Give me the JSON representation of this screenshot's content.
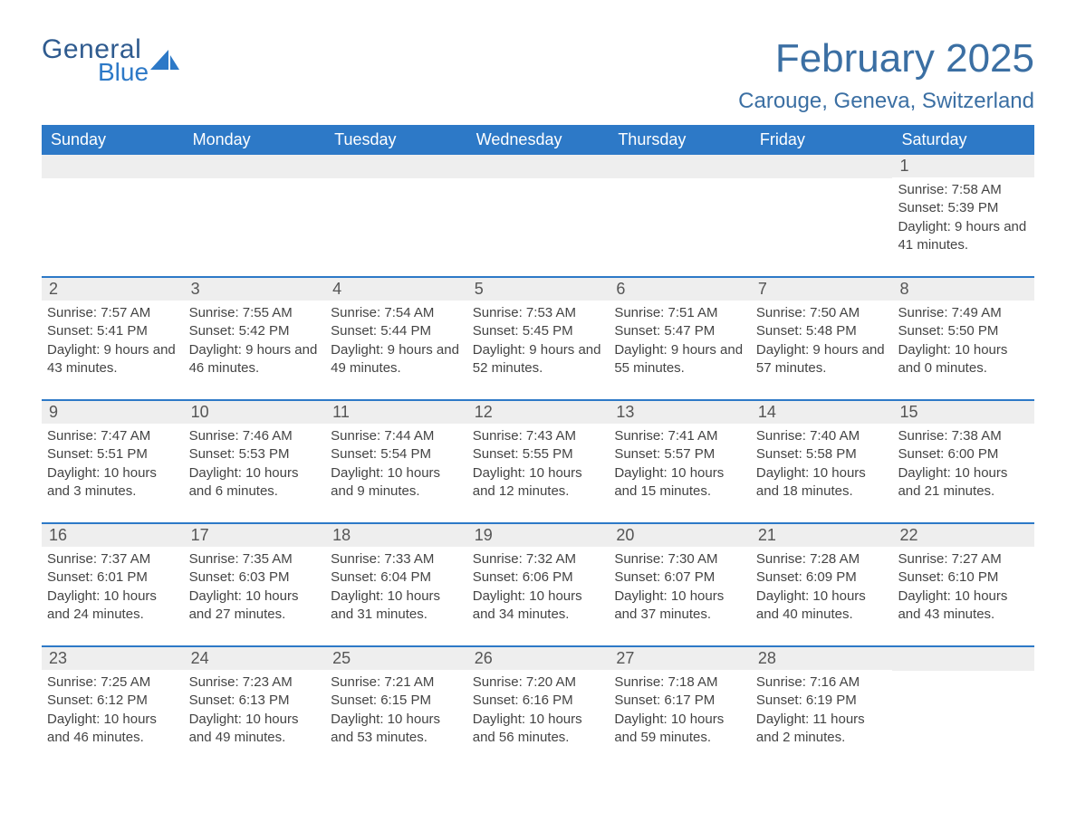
{
  "logo": {
    "general": "General",
    "blue": "Blue",
    "mark_color": "#2d79c7"
  },
  "title": "February 2025",
  "location": "Carouge, Geneva, Switzerland",
  "colors": {
    "header_bg": "#2d79c7",
    "header_text": "#ffffff",
    "accent_rule": "#2d79c7",
    "daynum_bg": "#eeeeee",
    "title_color": "#3b6fa3",
    "body_text": "#444444",
    "page_bg": "#ffffff"
  },
  "weekdays": [
    "Sunday",
    "Monday",
    "Tuesday",
    "Wednesday",
    "Thursday",
    "Friday",
    "Saturday"
  ],
  "weeks": [
    [
      null,
      null,
      null,
      null,
      null,
      null,
      {
        "n": "1",
        "sunrise": "Sunrise: 7:58 AM",
        "sunset": "Sunset: 5:39 PM",
        "daylight": "Daylight: 9 hours and 41 minutes."
      }
    ],
    [
      {
        "n": "2",
        "sunrise": "Sunrise: 7:57 AM",
        "sunset": "Sunset: 5:41 PM",
        "daylight": "Daylight: 9 hours and 43 minutes."
      },
      {
        "n": "3",
        "sunrise": "Sunrise: 7:55 AM",
        "sunset": "Sunset: 5:42 PM",
        "daylight": "Daylight: 9 hours and 46 minutes."
      },
      {
        "n": "4",
        "sunrise": "Sunrise: 7:54 AM",
        "sunset": "Sunset: 5:44 PM",
        "daylight": "Daylight: 9 hours and 49 minutes."
      },
      {
        "n": "5",
        "sunrise": "Sunrise: 7:53 AM",
        "sunset": "Sunset: 5:45 PM",
        "daylight": "Daylight: 9 hours and 52 minutes."
      },
      {
        "n": "6",
        "sunrise": "Sunrise: 7:51 AM",
        "sunset": "Sunset: 5:47 PM",
        "daylight": "Daylight: 9 hours and 55 minutes."
      },
      {
        "n": "7",
        "sunrise": "Sunrise: 7:50 AM",
        "sunset": "Sunset: 5:48 PM",
        "daylight": "Daylight: 9 hours and 57 minutes."
      },
      {
        "n": "8",
        "sunrise": "Sunrise: 7:49 AM",
        "sunset": "Sunset: 5:50 PM",
        "daylight": "Daylight: 10 hours and 0 minutes."
      }
    ],
    [
      {
        "n": "9",
        "sunrise": "Sunrise: 7:47 AM",
        "sunset": "Sunset: 5:51 PM",
        "daylight": "Daylight: 10 hours and 3 minutes."
      },
      {
        "n": "10",
        "sunrise": "Sunrise: 7:46 AM",
        "sunset": "Sunset: 5:53 PM",
        "daylight": "Daylight: 10 hours and 6 minutes."
      },
      {
        "n": "11",
        "sunrise": "Sunrise: 7:44 AM",
        "sunset": "Sunset: 5:54 PM",
        "daylight": "Daylight: 10 hours and 9 minutes."
      },
      {
        "n": "12",
        "sunrise": "Sunrise: 7:43 AM",
        "sunset": "Sunset: 5:55 PM",
        "daylight": "Daylight: 10 hours and 12 minutes."
      },
      {
        "n": "13",
        "sunrise": "Sunrise: 7:41 AM",
        "sunset": "Sunset: 5:57 PM",
        "daylight": "Daylight: 10 hours and 15 minutes."
      },
      {
        "n": "14",
        "sunrise": "Sunrise: 7:40 AM",
        "sunset": "Sunset: 5:58 PM",
        "daylight": "Daylight: 10 hours and 18 minutes."
      },
      {
        "n": "15",
        "sunrise": "Sunrise: 7:38 AM",
        "sunset": "Sunset: 6:00 PM",
        "daylight": "Daylight: 10 hours and 21 minutes."
      }
    ],
    [
      {
        "n": "16",
        "sunrise": "Sunrise: 7:37 AM",
        "sunset": "Sunset: 6:01 PM",
        "daylight": "Daylight: 10 hours and 24 minutes."
      },
      {
        "n": "17",
        "sunrise": "Sunrise: 7:35 AM",
        "sunset": "Sunset: 6:03 PM",
        "daylight": "Daylight: 10 hours and 27 minutes."
      },
      {
        "n": "18",
        "sunrise": "Sunrise: 7:33 AM",
        "sunset": "Sunset: 6:04 PM",
        "daylight": "Daylight: 10 hours and 31 minutes."
      },
      {
        "n": "19",
        "sunrise": "Sunrise: 7:32 AM",
        "sunset": "Sunset: 6:06 PM",
        "daylight": "Daylight: 10 hours and 34 minutes."
      },
      {
        "n": "20",
        "sunrise": "Sunrise: 7:30 AM",
        "sunset": "Sunset: 6:07 PM",
        "daylight": "Daylight: 10 hours and 37 minutes."
      },
      {
        "n": "21",
        "sunrise": "Sunrise: 7:28 AM",
        "sunset": "Sunset: 6:09 PM",
        "daylight": "Daylight: 10 hours and 40 minutes."
      },
      {
        "n": "22",
        "sunrise": "Sunrise: 7:27 AM",
        "sunset": "Sunset: 6:10 PM",
        "daylight": "Daylight: 10 hours and 43 minutes."
      }
    ],
    [
      {
        "n": "23",
        "sunrise": "Sunrise: 7:25 AM",
        "sunset": "Sunset: 6:12 PM",
        "daylight": "Daylight: 10 hours and 46 minutes."
      },
      {
        "n": "24",
        "sunrise": "Sunrise: 7:23 AM",
        "sunset": "Sunset: 6:13 PM",
        "daylight": "Daylight: 10 hours and 49 minutes."
      },
      {
        "n": "25",
        "sunrise": "Sunrise: 7:21 AM",
        "sunset": "Sunset: 6:15 PM",
        "daylight": "Daylight: 10 hours and 53 minutes."
      },
      {
        "n": "26",
        "sunrise": "Sunrise: 7:20 AM",
        "sunset": "Sunset: 6:16 PM",
        "daylight": "Daylight: 10 hours and 56 minutes."
      },
      {
        "n": "27",
        "sunrise": "Sunrise: 7:18 AM",
        "sunset": "Sunset: 6:17 PM",
        "daylight": "Daylight: 10 hours and 59 minutes."
      },
      {
        "n": "28",
        "sunrise": "Sunrise: 7:16 AM",
        "sunset": "Sunset: 6:19 PM",
        "daylight": "Daylight: 11 hours and 2 minutes."
      },
      null
    ]
  ]
}
